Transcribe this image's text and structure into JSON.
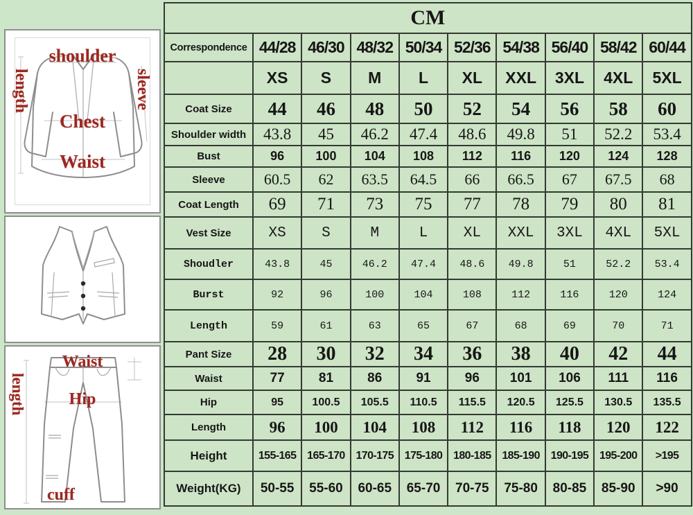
{
  "table": {
    "unit_header": "CM",
    "rows": [
      {
        "id": "correspondence",
        "label": "Correspondence",
        "values": [
          "44/28",
          "46/30",
          "48/32",
          "50/34",
          "52/36",
          "54/38",
          "56/40",
          "58/42",
          "60/44"
        ]
      },
      {
        "id": "sizes",
        "label": "",
        "values": [
          "XS",
          "S",
          "M",
          "L",
          "XL",
          "XXL",
          "3XL",
          "4XL",
          "5XL"
        ]
      },
      {
        "id": "coat-size",
        "label": "Coat Size",
        "values": [
          "44",
          "46",
          "48",
          "50",
          "52",
          "54",
          "56",
          "58",
          "60"
        ]
      },
      {
        "id": "shoulder-width",
        "label": "Shoulder width",
        "values": [
          "43.8",
          "45",
          "46.2",
          "47.4",
          "48.6",
          "49.8",
          "51",
          "52.2",
          "53.4"
        ]
      },
      {
        "id": "bust",
        "label": "Bust",
        "values": [
          "96",
          "100",
          "104",
          "108",
          "112",
          "116",
          "120",
          "124",
          "128"
        ]
      },
      {
        "id": "sleeve",
        "label": "Sleeve",
        "values": [
          "60.5",
          "62",
          "63.5",
          "64.5",
          "66",
          "66.5",
          "67",
          "67.5",
          "68"
        ]
      },
      {
        "id": "coat-length",
        "label": "Coat Length",
        "values": [
          "69",
          "71",
          "73",
          "75",
          "77",
          "78",
          "79",
          "80",
          "81"
        ]
      },
      {
        "id": "vest-size",
        "label": "Vest Size",
        "values": [
          "XS",
          "S",
          "M",
          "L",
          "XL",
          "XXL",
          "3XL",
          "4XL",
          "5XL"
        ]
      },
      {
        "id": "vest-shoulder",
        "label": "Shoudler",
        "values": [
          "43.8",
          "45",
          "46.2",
          "47.4",
          "48.6",
          "49.8",
          "51",
          "52.2",
          "53.4"
        ]
      },
      {
        "id": "vest-burst",
        "label": "Burst",
        "values": [
          "92",
          "96",
          "100",
          "104",
          "108",
          "112",
          "116",
          "120",
          "124"
        ]
      },
      {
        "id": "vest-length",
        "label": "Length",
        "values": [
          "59",
          "61",
          "63",
          "65",
          "67",
          "68",
          "69",
          "70",
          "71"
        ]
      },
      {
        "id": "pant-size",
        "label": "Pant Size",
        "values": [
          "28",
          "30",
          "32",
          "34",
          "36",
          "38",
          "40",
          "42",
          "44"
        ]
      },
      {
        "id": "pant-waist",
        "label": "Waist",
        "values": [
          "77",
          "81",
          "86",
          "91",
          "96",
          "101",
          "106",
          "111",
          "116"
        ]
      },
      {
        "id": "pant-hip",
        "label": "Hip",
        "values": [
          "95",
          "100.5",
          "105.5",
          "110.5",
          "115.5",
          "120.5",
          "125.5",
          "130.5",
          "135.5"
        ]
      },
      {
        "id": "pant-length",
        "label": "Length",
        "values": [
          "96",
          "100",
          "104",
          "108",
          "112",
          "116",
          "118",
          "120",
          "122"
        ]
      },
      {
        "id": "height",
        "label": "Height",
        "values": [
          "155-165",
          "165-170",
          "170-175",
          "175-180",
          "180-185",
          "185-190",
          "190-195",
          "195-200",
          ">195"
        ]
      },
      {
        "id": "weight",
        "label": "Weight(KG)",
        "values": [
          "50-55",
          "55-60",
          "60-65",
          "65-70",
          "70-75",
          "75-80",
          "80-85",
          "85-90",
          ">90"
        ]
      }
    ]
  },
  "diagrams": {
    "jacket": {
      "shoulder": "shoulder",
      "length": "length",
      "sleeve": "sleeve",
      "chest": "Chest",
      "waist": "Waist"
    },
    "pants": {
      "waist": "Waist",
      "length": "length",
      "hip": "Hip",
      "cuff": "cuff"
    }
  },
  "colors": {
    "background_green": "#cde5c9",
    "cell_green": "#cde4c6",
    "coat_size_row_yellow": "#f1e87c",
    "vest_size_row_orange": "#f0a372",
    "vest_data_row_bg": "#edf2e4",
    "pant_size_row_purple": "#bd8edd",
    "size_text_red": "#c7231f",
    "correspondence_purple": "#8b2fa0",
    "height_weight_green": "#2d6a33",
    "diagram_label_red": "#9c2820"
  }
}
